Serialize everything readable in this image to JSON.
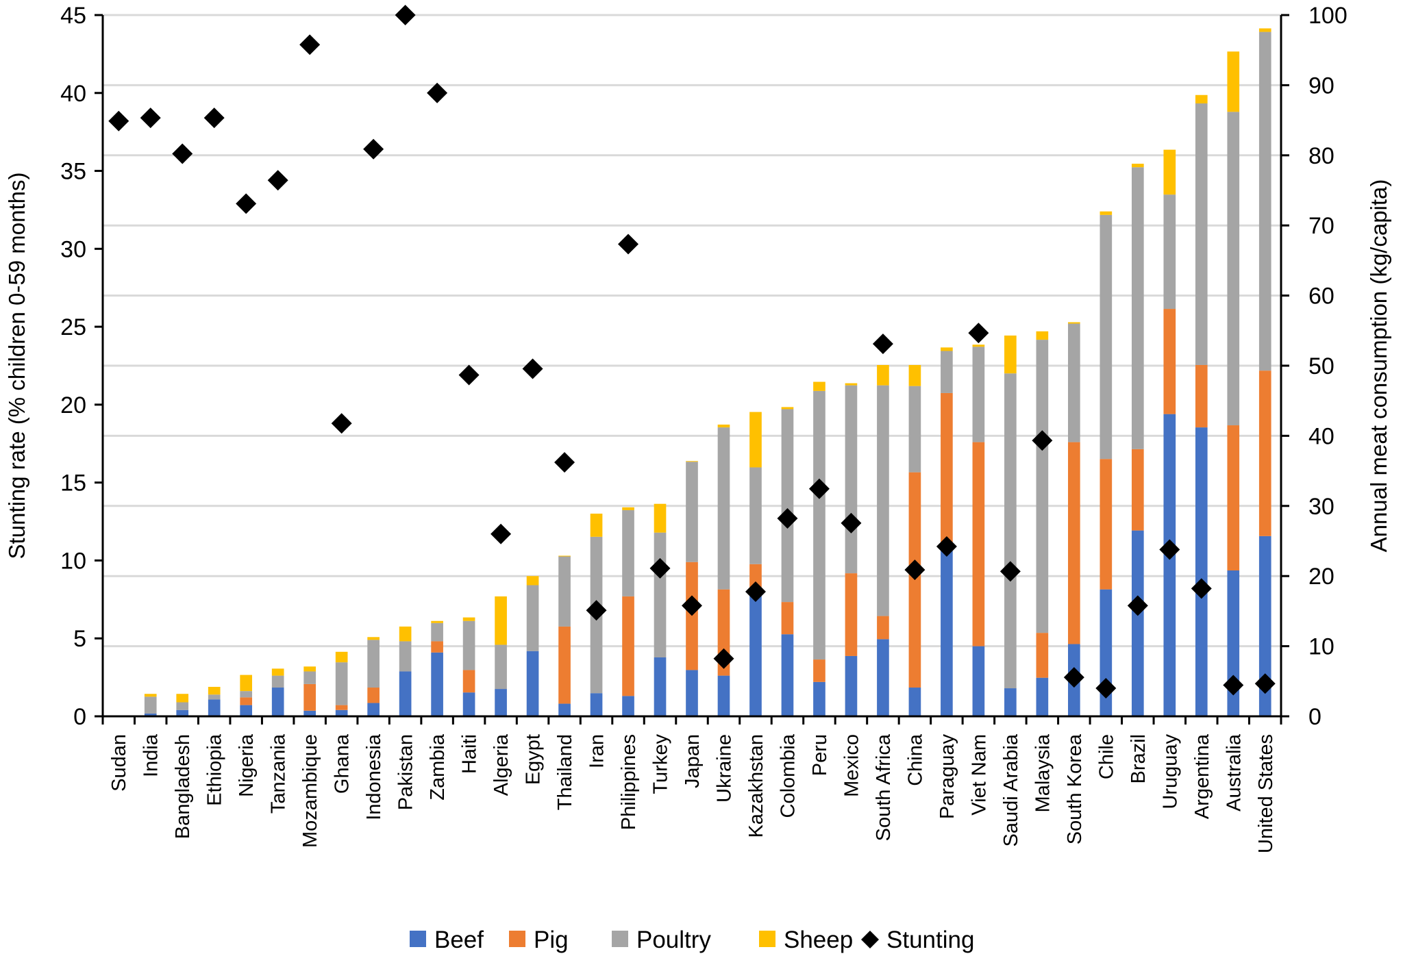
{
  "chart_data": {
    "type": "bar",
    "stacked": true,
    "categories": [
      "Sudan",
      "India",
      "Bangladesh",
      "Ethiopia",
      "Nigeria",
      "Tanzania",
      "Mozambique",
      "Ghana",
      "Indonesia",
      "Pakistan",
      "Zambia",
      "Haiti",
      "Algeria",
      "Egypt",
      "Thailand",
      "Iran",
      "Philippines",
      "Turkey",
      "Japan",
      "Ukraine",
      "Kazakhstan",
      "Colombia",
      "Peru",
      "Mexico",
      "South Africa",
      "China",
      "Paraguay",
      "Viet Nam",
      "Saudi Arabia",
      "Malaysia",
      "South Korea",
      "Chile",
      "Brazil",
      "Uruguay",
      "Argentina",
      "Australia",
      "United States"
    ],
    "series": [
      {
        "name": "Beef",
        "color": "#4472C4",
        "axis": "right",
        "values": [
          0,
          0.4,
          0.9,
          2.4,
          1.6,
          4.1,
          0.8,
          0.9,
          1.9,
          6.4,
          9.1,
          3.4,
          3.9,
          9.3,
          1.8,
          3.3,
          2.9,
          8.4,
          6.6,
          5.8,
          18.1,
          11.7,
          4.9,
          8.6,
          11.0,
          4.1,
          24.0,
          10.0,
          4.0,
          5.5,
          10.3,
          18.1,
          26.5,
          43.1,
          41.2,
          20.8,
          25.7
        ]
      },
      {
        "name": "Pig",
        "color": "#ED7D31",
        "axis": "right",
        "values": [
          0,
          0.0,
          0.0,
          0.0,
          1.1,
          0.0,
          3.8,
          0.7,
          2.2,
          0.0,
          1.6,
          3.2,
          0.0,
          0.0,
          11.0,
          0.0,
          14.2,
          0.0,
          15.4,
          12.3,
          3.6,
          4.6,
          3.2,
          11.8,
          3.3,
          30.7,
          22.1,
          29.1,
          0.0,
          6.4,
          28.8,
          18.6,
          11.6,
          15.0,
          8.9,
          20.7,
          23.6
        ]
      },
      {
        "name": "Poultry",
        "color": "#A5A5A5",
        "axis": "right",
        "values": [
          0,
          2.4,
          1.1,
          0.7,
          0.9,
          1.7,
          1.8,
          6.1,
          6.8,
          4.3,
          2.6,
          7.0,
          6.3,
          9.4,
          10.0,
          22.3,
          12.3,
          17.8,
          14.3,
          23.1,
          13.8,
          27.5,
          38.3,
          26.8,
          32.9,
          12.3,
          6.0,
          13.6,
          44.9,
          41.8,
          16.9,
          34.8,
          40.2,
          16.3,
          37.3,
          44.7,
          48.3
        ]
      },
      {
        "name": "Sheep",
        "color": "#FFC000",
        "axis": "right",
        "values": [
          0,
          0.4,
          1.2,
          1.1,
          2.3,
          1.0,
          0.7,
          1.5,
          0.4,
          2.1,
          0.3,
          0.5,
          6.9,
          1.3,
          0.1,
          3.3,
          0.4,
          4.1,
          0.1,
          0.4,
          7.9,
          0.3,
          1.3,
          0.3,
          2.9,
          3.0,
          0.5,
          0.3,
          5.4,
          1.2,
          0.2,
          0.5,
          0.5,
          6.4,
          1.2,
          8.6,
          0.5
        ]
      },
      {
        "name": "Stunting",
        "color": "#000000",
        "marker": "diamond",
        "axis": "left",
        "values": [
          38.2,
          38.4,
          36.1,
          38.4,
          32.9,
          34.4,
          43.1,
          18.8,
          36.4,
          45.0,
          40.0,
          21.9,
          11.7,
          22.3,
          16.3,
          6.8,
          30.3,
          9.5,
          7.1,
          3.7,
          8.0,
          12.7,
          14.6,
          12.4,
          23.9,
          9.4,
          10.9,
          24.6,
          9.3,
          17.7,
          2.5,
          1.8,
          7.1,
          10.7,
          8.2,
          2.0,
          2.1
        ]
      }
    ],
    "left_axis": {
      "label": "Stunting rate (% children 0-59 months)",
      "min": 0,
      "max": 45,
      "ticks": [
        0,
        5,
        10,
        15,
        20,
        25,
        30,
        35,
        40,
        45
      ]
    },
    "right_axis": {
      "label": "Annual meat consumption (kg/capita)",
      "min": 0,
      "max": 100,
      "ticks": [
        0,
        10,
        20,
        30,
        40,
        50,
        60,
        70,
        80,
        90,
        100
      ]
    },
    "grid": true,
    "legend": {
      "position": "bottom",
      "entries": [
        "Beef",
        "Pig",
        "Poultry",
        "Sheep",
        "Stunting"
      ]
    }
  }
}
